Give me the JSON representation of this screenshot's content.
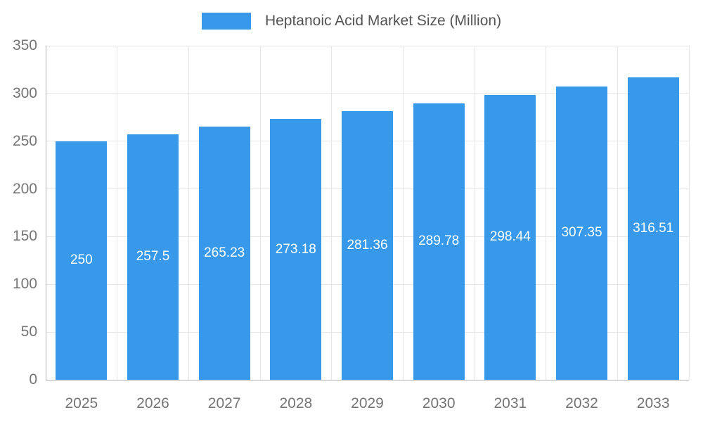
{
  "legend": {
    "label": "Heptanoic Acid Market Size (Million)"
  },
  "colors": {
    "bar": "#3899EB",
    "grid": "#e6e6e6",
    "axis_line": "#b3b3b3",
    "axis_text": "#757575",
    "legend_text": "#545454",
    "bar_label": "#ffffff"
  },
  "chart_data": {
    "type": "bar",
    "title": "Heptanoic Acid Market Size (Million)",
    "categories": [
      "2025",
      "2026",
      "2027",
      "2028",
      "2029",
      "2030",
      "2031",
      "2032",
      "2033"
    ],
    "values": [
      250,
      257.5,
      265.23,
      273.18,
      281.36,
      289.78,
      298.44,
      307.35,
      316.51
    ],
    "value_labels": [
      "250",
      "257.5",
      "265.23",
      "273.18",
      "281.36",
      "289.78",
      "298.44",
      "307.35",
      "316.51"
    ],
    "series_name": "Heptanoic Acid Market Size (Million)",
    "xlabel": "",
    "ylabel": "",
    "ylim": [
      0,
      350
    ],
    "yticks": [
      0,
      50,
      100,
      150,
      200,
      250,
      300,
      350
    ],
    "grid": true,
    "legend_position": "top",
    "value_label_position": "center-of-bar"
  }
}
